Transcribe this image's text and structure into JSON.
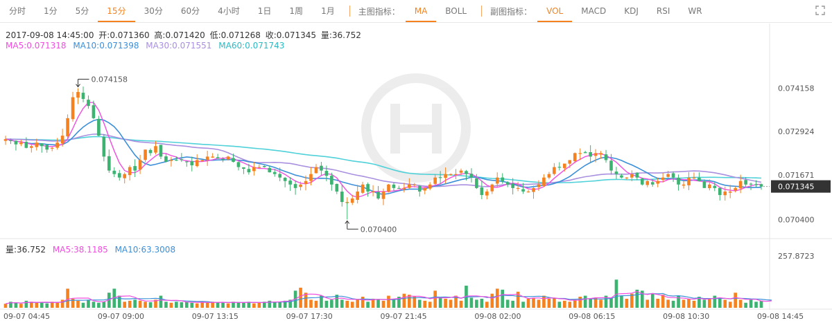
{
  "toolbar": {
    "timeframes": [
      "分时",
      "1分",
      "5分",
      "15分",
      "30分",
      "60分",
      "4小时",
      "1日",
      "1周",
      "1月"
    ],
    "active_timeframe_index": 3,
    "main_indicator_label": "主图指标：",
    "main_indicators": [
      "MA",
      "BOLL"
    ],
    "active_main_index": 0,
    "sub_indicator_label": "副图指标：",
    "sub_indicators": [
      "VOL",
      "MACD",
      "KDJ",
      "RSI",
      "WR"
    ],
    "active_sub_index": 0,
    "expand_icon": "fullscreen-icon"
  },
  "info": {
    "datetime": "2017-09-08 14:45:00",
    "open": "开:0.071360",
    "high": "高:0.071420",
    "low": "低:0.071268",
    "close": "收:0.071345",
    "volume": "量:36.752",
    "ma5": "MA5:0.071318",
    "ma10": "MA10:0.071398",
    "ma30": "MA30:0.071551",
    "ma60": "MA60:0.071743"
  },
  "volume_info": {
    "vol": "量:36.752",
    "ma5": "MA5:38.1185",
    "ma10": "MA10:63.3008"
  },
  "colors": {
    "up": "#f5821f",
    "down": "#3cb371",
    "ma5": "#f04ce0",
    "ma10": "#3b8fd9",
    "ma30": "#a98fe0",
    "ma60": "#4fd1d9",
    "accent": "#f5821f"
  },
  "chart_data": {
    "type": "candlestick",
    "price_axis": {
      "ticks": [
        "0.074158",
        "0.072924",
        "0.071671",
        "0.070400"
      ],
      "range": [
        0.06995,
        0.0751
      ],
      "current_price": "0.071345"
    },
    "volume_axis": {
      "ticks": [
        "257.8723"
      ],
      "max": 257.8723
    },
    "time_labels": [
      "09-07 04:45",
      "09-07 09:00",
      "09-07 13:15",
      "09-07 17:30",
      "09-07 21:45",
      "09-08 02:00",
      "09-08 06:15",
      "09-08 10:30",
      "09-08 14:45"
    ],
    "annotations": {
      "high_label": "0.074158",
      "high_value": 0.074158,
      "low_label": "0.070400",
      "low_value": 0.0704
    },
    "close_series": [
      0.0727,
      0.07265,
      0.07255,
      0.0726,
      0.07245,
      0.0725,
      0.0726,
      0.0725,
      0.0724,
      0.07245,
      0.0726,
      0.0728,
      0.0733,
      0.0739,
      0.07405,
      0.07385,
      0.07365,
      0.0733,
      0.0728,
      0.0722,
      0.0718,
      0.0717,
      0.0716,
      0.0717,
      0.0719,
      0.0718,
      0.0721,
      0.0724,
      0.0723,
      0.0725,
      0.0722,
      0.07205,
      0.0721,
      0.0721,
      0.0721,
      0.07205,
      0.07195,
      0.0721,
      0.0721,
      0.0722,
      0.0722,
      0.07215,
      0.0721,
      0.0722,
      0.07205,
      0.0719,
      0.07185,
      0.07175,
      0.0719,
      0.0719,
      0.0719,
      0.07175,
      0.0717,
      0.0716,
      0.0715,
      0.0714,
      0.0713,
      0.0714,
      0.0715,
      0.0717,
      0.0719,
      0.0718,
      0.07165,
      0.0714,
      0.0712,
      0.0709,
      0.0709,
      0.071,
      0.0712,
      0.0714,
      0.0712,
      0.0712,
      0.071,
      0.0712,
      0.0714,
      0.0713,
      0.0713,
      0.0713,
      0.0714,
      0.0714,
      0.0712,
      0.0713,
      0.0714,
      0.0716,
      0.0716,
      0.0717,
      0.0717,
      0.0717,
      0.0718,
      0.0717,
      0.0716,
      0.0713,
      0.0711,
      0.0712,
      0.0714,
      0.0716,
      0.0715,
      0.0714,
      0.0713,
      0.0713,
      0.0712,
      0.0712,
      0.0713,
      0.0714,
      0.0716,
      0.0717,
      0.0719,
      0.0719,
      0.072,
      0.0721,
      0.0723,
      0.0723,
      0.0723,
      0.0722,
      0.0723,
      0.0723,
      0.0721,
      0.0718,
      0.0717,
      0.0716,
      0.0716,
      0.0717,
      0.0716,
      0.0714,
      0.0715,
      0.0714,
      0.0715,
      0.0716,
      0.0717,
      0.0716,
      0.0714,
      0.0714,
      0.0716,
      0.0716,
      0.0715,
      0.0713,
      0.0714,
      0.0713,
      0.0711,
      0.0712,
      0.0712,
      0.0713,
      0.0715,
      0.0714,
      0.0714,
      0.0714,
      0.07134
    ],
    "volume_series": [
      20,
      30,
      25,
      20,
      35,
      30,
      25,
      28,
      22,
      30,
      25,
      40,
      95,
      45,
      35,
      25,
      40,
      30,
      25,
      30,
      75,
      95,
      60,
      30,
      35,
      40,
      35,
      30,
      28,
      40,
      60,
      30,
      25,
      30,
      28,
      30,
      25,
      22,
      30,
      25,
      30,
      28,
      25,
      22,
      30,
      28,
      25,
      30,
      22,
      25,
      30,
      35,
      30,
      30,
      35,
      40,
      85,
      100,
      75,
      40,
      35,
      60,
      35,
      40,
      65,
      40,
      35,
      30,
      40,
      55,
      30,
      45,
      40,
      35,
      60,
      40,
      55,
      70,
      65,
      55,
      40,
      35,
      30,
      85,
      55,
      45,
      40,
      60,
      35,
      110,
      50,
      40,
      45,
      30,
      70,
      95,
      90,
      40,
      35,
      80,
      30,
      45,
      50,
      40,
      60,
      45,
      50,
      30,
      35,
      30,
      40,
      55,
      60,
      45,
      50,
      40,
      60,
      50,
      140,
      60,
      45,
      70,
      90,
      85,
      40,
      70,
      45,
      65,
      40,
      35,
      60,
      40,
      45,
      35,
      55,
      40,
      45,
      60,
      50,
      40,
      30,
      75,
      40,
      25,
      40,
      30,
      35,
      30,
      36.752
    ]
  }
}
